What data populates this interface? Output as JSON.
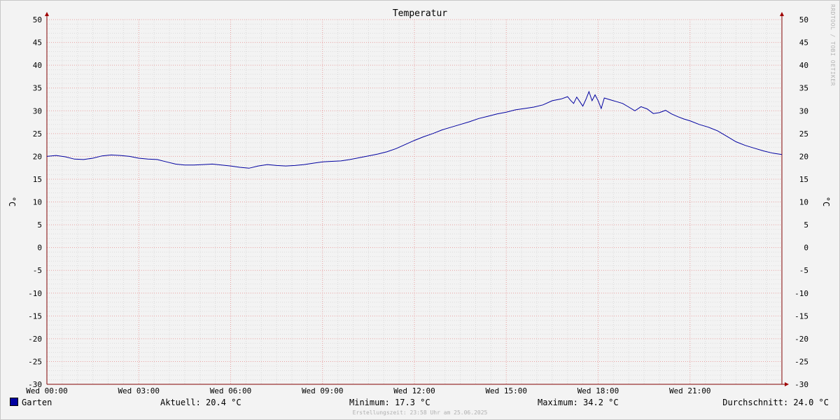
{
  "chart_data": {
    "type": "line",
    "title": "Temperatur",
    "ylabel": "°C",
    "ylim": [
      -30,
      50
    ],
    "y_ticks": [
      "50",
      "45",
      "40",
      "35",
      "30",
      "25",
      "20",
      "15",
      "10",
      "5",
      "0",
      "-5",
      "-10",
      "-15",
      "-20",
      "-25",
      "-30"
    ],
    "x_range_hours": [
      0,
      24
    ],
    "x_ticks": [
      {
        "hour": 0,
        "label": "Wed 00:00"
      },
      {
        "hour": 3,
        "label": "Wed 03:00"
      },
      {
        "hour": 6,
        "label": "Wed 06:00"
      },
      {
        "hour": 9,
        "label": "Wed 09:00"
      },
      {
        "hour": 12,
        "label": "Wed 12:00"
      },
      {
        "hour": 15,
        "label": "Wed 15:00"
      },
      {
        "hour": 18,
        "label": "Wed 18:00"
      },
      {
        "hour": 21,
        "label": "Wed 21:00"
      }
    ],
    "grid": true,
    "series": [
      {
        "name": "Garten",
        "color": "#0000a0",
        "points": [
          [
            0.0,
            20.0
          ],
          [
            0.3,
            20.2
          ],
          [
            0.6,
            19.9
          ],
          [
            0.9,
            19.4
          ],
          [
            1.2,
            19.3
          ],
          [
            1.5,
            19.6
          ],
          [
            1.8,
            20.1
          ],
          [
            2.1,
            20.3
          ],
          [
            2.4,
            20.2
          ],
          [
            2.7,
            20.0
          ],
          [
            3.0,
            19.6
          ],
          [
            3.3,
            19.4
          ],
          [
            3.6,
            19.3
          ],
          [
            3.9,
            18.8
          ],
          [
            4.2,
            18.3
          ],
          [
            4.5,
            18.1
          ],
          [
            4.8,
            18.1
          ],
          [
            5.1,
            18.2
          ],
          [
            5.4,
            18.3
          ],
          [
            5.7,
            18.1
          ],
          [
            6.0,
            17.9
          ],
          [
            6.3,
            17.6
          ],
          [
            6.6,
            17.4
          ],
          [
            6.9,
            17.9
          ],
          [
            7.2,
            18.2
          ],
          [
            7.5,
            18.0
          ],
          [
            7.8,
            17.9
          ],
          [
            8.1,
            18.0
          ],
          [
            8.4,
            18.2
          ],
          [
            8.7,
            18.5
          ],
          [
            9.0,
            18.8
          ],
          [
            9.3,
            18.9
          ],
          [
            9.6,
            19.0
          ],
          [
            9.9,
            19.3
          ],
          [
            10.2,
            19.7
          ],
          [
            10.5,
            20.1
          ],
          [
            10.8,
            20.5
          ],
          [
            11.1,
            21.0
          ],
          [
            11.4,
            21.7
          ],
          [
            11.7,
            22.6
          ],
          [
            12.0,
            23.5
          ],
          [
            12.3,
            24.3
          ],
          [
            12.6,
            25.0
          ],
          [
            12.9,
            25.8
          ],
          [
            13.2,
            26.4
          ],
          [
            13.5,
            27.0
          ],
          [
            13.8,
            27.6
          ],
          [
            14.1,
            28.3
          ],
          [
            14.4,
            28.8
          ],
          [
            14.7,
            29.3
          ],
          [
            15.0,
            29.7
          ],
          [
            15.3,
            30.2
          ],
          [
            15.6,
            30.5
          ],
          [
            15.9,
            30.8
          ],
          [
            16.2,
            31.3
          ],
          [
            16.5,
            32.2
          ],
          [
            16.8,
            32.6
          ],
          [
            17.0,
            33.1
          ],
          [
            17.1,
            32.3
          ],
          [
            17.2,
            31.6
          ],
          [
            17.3,
            33.0
          ],
          [
            17.4,
            32.0
          ],
          [
            17.5,
            31.0
          ],
          [
            17.6,
            32.5
          ],
          [
            17.7,
            34.2
          ],
          [
            17.8,
            32.2
          ],
          [
            17.9,
            33.5
          ],
          [
            18.0,
            32.2
          ],
          [
            18.1,
            30.5
          ],
          [
            18.2,
            32.8
          ],
          [
            18.4,
            32.4
          ],
          [
            18.6,
            32.0
          ],
          [
            18.8,
            31.6
          ],
          [
            19.0,
            30.8
          ],
          [
            19.2,
            30.0
          ],
          [
            19.4,
            30.9
          ],
          [
            19.6,
            30.4
          ],
          [
            19.8,
            29.4
          ],
          [
            20.0,
            29.6
          ],
          [
            20.2,
            30.1
          ],
          [
            20.4,
            29.3
          ],
          [
            20.6,
            28.7
          ],
          [
            20.8,
            28.2
          ],
          [
            21.0,
            27.8
          ],
          [
            21.3,
            27.0
          ],
          [
            21.6,
            26.4
          ],
          [
            21.9,
            25.6
          ],
          [
            22.2,
            24.4
          ],
          [
            22.5,
            23.2
          ],
          [
            22.8,
            22.4
          ],
          [
            23.1,
            21.8
          ],
          [
            23.4,
            21.2
          ],
          [
            23.7,
            20.7
          ],
          [
            24.0,
            20.4
          ]
        ]
      }
    ]
  },
  "watermark": "RRDTOOL / TOBI OETIKER",
  "legend": {
    "series_name": "Garten",
    "aktuell": "Aktuell: 20.4 °C",
    "minimum": "Minimum: 17.3 °C",
    "maximum": "Maximum: 34.2 °C",
    "durchschnitt": "Durchschnitt: 24.0 °C"
  },
  "footer": "Erstellungszeit: 23:58 Uhr am 25.06.2025"
}
